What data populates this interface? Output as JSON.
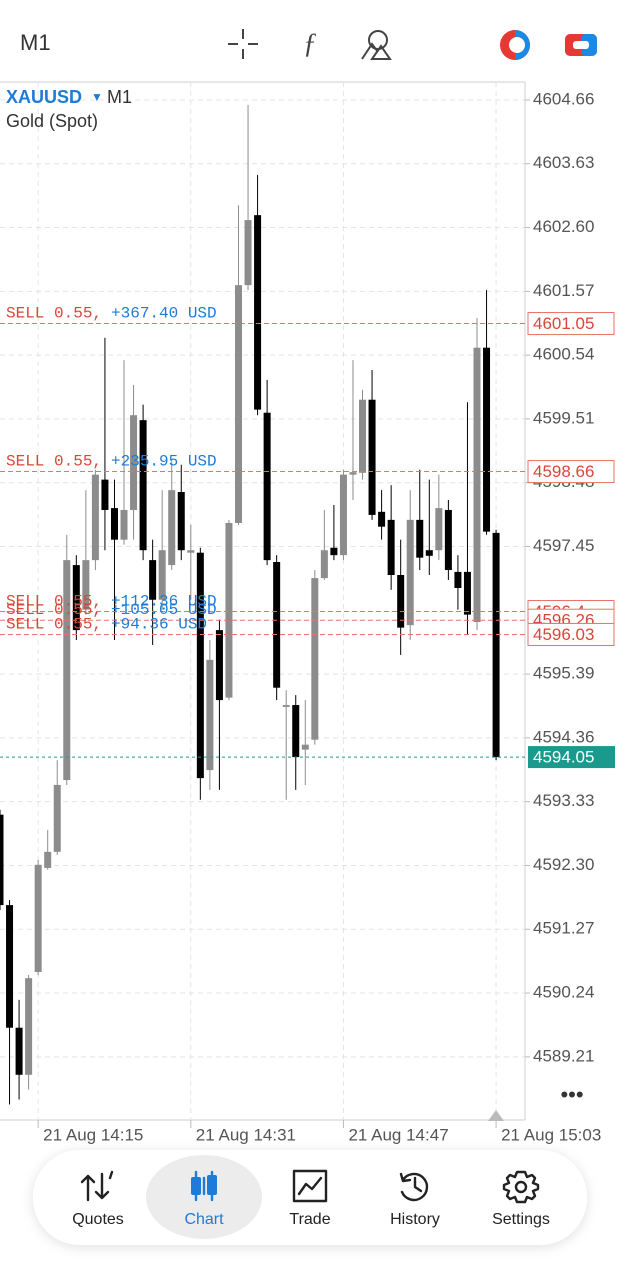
{
  "toolbar": {
    "timeframe": "M1"
  },
  "chart_data": {
    "type": "candlestick",
    "symbol": "XAUUSD",
    "timeframe": "M1",
    "description": "Gold (Spot)",
    "categories": [
      null,
      null,
      null,
      null,
      "21 Aug 14:15",
      null,
      null,
      null,
      null,
      null,
      null,
      null,
      null,
      null,
      null,
      null,
      null,
      null,
      null,
      null,
      "21 Aug 14:31",
      null,
      null,
      null,
      null,
      null,
      null,
      null,
      null,
      null,
      null,
      null,
      null,
      null,
      null,
      null,
      "21 Aug 14:47",
      null,
      null,
      null,
      null,
      null,
      null,
      null,
      null,
      null,
      null,
      null,
      null,
      null,
      null,
      null,
      "21 Aug 15:03"
    ],
    "open": [
      4593.12,
      4591.66,
      4589.68,
      4588.92,
      4590.58,
      4592.26,
      4592.52,
      4593.68,
      4597.15,
      4596.43,
      4597.23,
      4598.53,
      4598.07,
      4597.56,
      4598.04,
      4599.49,
      4597.23,
      4596.59,
      4597.15,
      4598.33,
      4597.35,
      4597.35,
      4593.84,
      4596.1,
      4595.01,
      4597.83,
      4601.67,
      4602.8,
      4599.61,
      4597.2,
      4594.86,
      4594.89,
      4594.17,
      4594.33,
      4596.94,
      4597.43,
      4597.31,
      4598.61,
      4598.64,
      4599.82,
      4598.01,
      4597.88,
      4596.99,
      4596.18,
      4597.88,
      4597.39,
      4597.39,
      4598.04,
      4597.04,
      4597.04,
      4596.23,
      4600.66,
      4597.67
    ],
    "high": [
      4593.2,
      4591.74,
      4590.13,
      4590.53,
      4592.39,
      4592.87,
      4594.0,
      4597.64,
      4597.31,
      4598.36,
      4598.69,
      4600.82,
      4598.53,
      4600.46,
      4600.06,
      4599.74,
      4597.56,
      4598.36,
      4598.85,
      4598.77,
      4597.8,
      4597.43,
      4595.94,
      4596.27,
      4597.88,
      4602.96,
      4604.58,
      4603.45,
      4600.14,
      4597.31,
      4595.13,
      4595.05,
      4594.97,
      4597.07,
      4598.04,
      4598.12,
      4598.69,
      4600.46,
      4599.98,
      4600.3,
      4598.36,
      4598.44,
      4597.56,
      4598.36,
      4598.69,
      4598.53,
      4598.61,
      4598.2,
      4597.31,
      4599.78,
      4601.14,
      4601.59,
      4597.72
    ],
    "low": [
      4591.58,
      4588.44,
      4588.52,
      4588.68,
      4590.53,
      4592.23,
      4592.47,
      4593.6,
      4595.94,
      4596.35,
      4597.07,
      4597.39,
      4595.94,
      4597.48,
      4597.56,
      4597.23,
      4595.86,
      4596.43,
      4597.07,
      4597.23,
      4596.59,
      4593.36,
      4593.52,
      4593.52,
      4594.97,
      4597.8,
      4601.59,
      4599.57,
      4597.15,
      4594.97,
      4593.36,
      4593.52,
      4593.6,
      4594.25,
      4596.91,
      4597.23,
      4597.23,
      4598.2,
      4598.53,
      4597.88,
      4597.56,
      4596.75,
      4595.7,
      4595.94,
      4597.07,
      4596.99,
      4597.23,
      4596.91,
      4596.43,
      4596.02,
      4596.1,
      4597.64,
      4594.0
    ],
    "close": [
      4591.66,
      4589.68,
      4588.92,
      4590.48,
      4592.31,
      4592.52,
      4593.6,
      4597.23,
      4596.1,
      4597.23,
      4598.61,
      4598.04,
      4597.56,
      4598.04,
      4599.57,
      4597.39,
      4596.59,
      4597.39,
      4598.36,
      4597.39,
      4597.39,
      4593.71,
      4595.62,
      4594.97,
      4597.83,
      4601.67,
      4602.72,
      4599.66,
      4597.23,
      4595.17,
      4594.89,
      4594.05,
      4594.25,
      4596.94,
      4597.39,
      4597.31,
      4598.61,
      4598.65,
      4599.82,
      4597.96,
      4597.77,
      4596.99,
      4596.14,
      4597.88,
      4597.27,
      4597.3,
      4598.07,
      4597.07,
      4596.78,
      4596.35,
      4600.66,
      4597.69,
      4594.05
    ],
    "up_color": "#8c8c8c",
    "down_color": "#000000",
    "ylim": [
      4588.19,
      4604.95
    ],
    "yticks": [
      4604.66,
      4603.63,
      {
        "value": 4602.6,
        "label": "4602.60"
      },
      4601.57,
      4600.54,
      4599.51,
      4598.48,
      4597.45,
      4595.39,
      4594.36,
      4593.33,
      {
        "value": 4592.3,
        "label": "4592.30"
      },
      4591.27,
      4590.24,
      4589.21
    ],
    "grid": true,
    "orders": [
      {
        "label": "SELL 0.55,",
        "profit": "+367.40 USD",
        "price": 4601.05
      },
      {
        "label": "SELL 0.55,",
        "profit": "+235.95 USD",
        "price": 4598.66
      },
      {
        "label": "SELL 0.55,",
        "profit": "+112.36 USD",
        "price": 4596.4
      },
      {
        "label": "SELL 0.55,",
        "profit": "+105.05 USD",
        "price": 4596.26
      },
      {
        "label": "SELL 0.55,",
        "profit": "+94.36 USD",
        "price": 4596.03
      }
    ],
    "current_price": 4594.05
  },
  "nav": {
    "items": [
      "Quotes",
      "Chart",
      "Trade",
      "History",
      "Settings"
    ],
    "active": 1
  }
}
